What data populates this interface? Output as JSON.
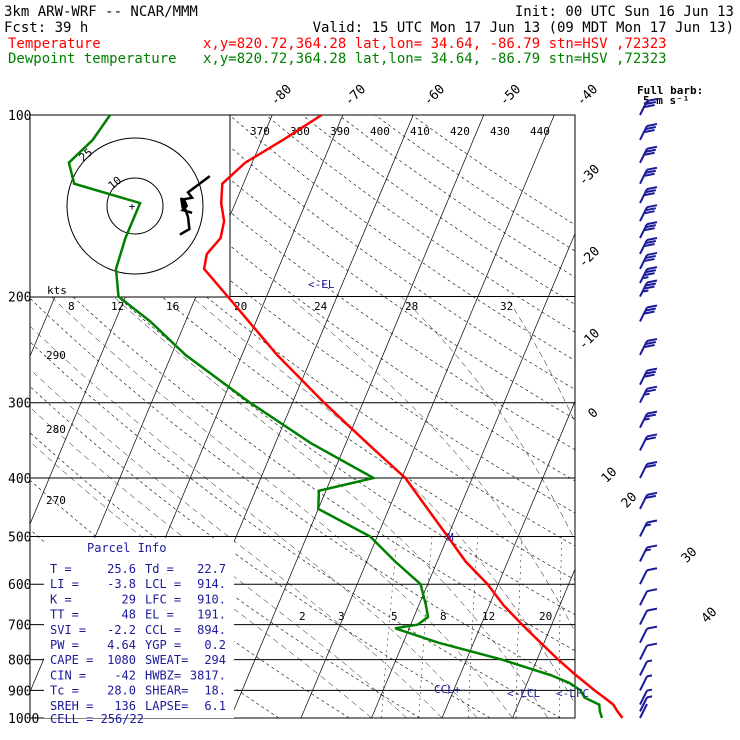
{
  "header": {
    "line1_left": "3km ARW-WRF -- NCAR/MMM",
    "line1_right": "Init: 00 UTC Sun 16 Jun 13",
    "line2_left": "Fcst:   39 h",
    "line2_right": "Valid: 15 UTC Mon 17 Jun 13 (09 MDT Mon 17 Jun 13)",
    "temp_label": "Temperature",
    "temp_info": "x,y=820.72,364.28   lat,lon= 34.64, -86.79   stn=HSV ,72323",
    "dew_label": "Dewpoint temperature",
    "dew_info": "x,y=820.72,364.28   lat,lon= 34.64, -86.79   stn=HSV ,72323"
  },
  "barb_legend": {
    "line1": "Full barb:",
    "line2": "5 m s⁻¹"
  },
  "colors": {
    "temperature": "#ff0000",
    "dewpoint": "#008000",
    "annotation": "#1a1a9a",
    "axes": "#000000"
  },
  "hodograph": {
    "units": "kts",
    "ring_labels": [
      "25",
      "10"
    ],
    "path_uv": [
      [
        27.5,
        11
      ],
      [
        19.5,
        5
      ],
      [
        21,
        3
      ],
      [
        18,
        2.5
      ],
      [
        19,
        0
      ],
      [
        17.5,
        -1.5
      ],
      [
        21,
        -2.5
      ],
      [
        19,
        -2
      ],
      [
        17.5,
        -0.5
      ],
      [
        17,
        3
      ],
      [
        19.5,
        -4
      ],
      [
        20,
        -8.5
      ],
      [
        16.5,
        -10.5
      ]
    ]
  },
  "theta_labels": [
    "370",
    "380",
    "390",
    "400",
    "410",
    "420",
    "430",
    "440"
  ],
  "mixing_ratio_top": [
    "8",
    "12",
    "16",
    "20",
    "24",
    "28",
    "32"
  ],
  "mixing_ratio_low": [
    "2",
    "3",
    "5",
    "8",
    "12",
    "20"
  ],
  "left_theta_labels": [
    "290",
    "280",
    "270"
  ],
  "chart_data": {
    "type": "line",
    "chart_kind": "skew-T log-p sounding",
    "pressure_levels": [
      "100",
      "200",
      "300",
      "400",
      "500",
      "600",
      "700",
      "800",
      "900",
      "1000"
    ],
    "temperature_axis_labels": [
      "-80",
      "-70",
      "-60",
      "-50",
      "-40",
      "-30",
      "-20",
      "-10",
      "0",
      "10",
      "20",
      "30",
      "40"
    ],
    "y_scale": "log pressure (hPa)",
    "series": [
      {
        "name": "Temperature",
        "points": [
          [
            1000,
            25.6
          ],
          [
            975,
            24.5
          ],
          [
            950,
            23.5
          ],
          [
            925,
            21.8
          ],
          [
            900,
            20.0
          ],
          [
            850,
            16.5
          ],
          [
            800,
            13.0
          ],
          [
            750,
            9.5
          ],
          [
            700,
            5.8
          ],
          [
            650,
            2.0
          ],
          [
            600,
            -1.5
          ],
          [
            550,
            -6.0
          ],
          [
            500,
            -10.0
          ],
          [
            450,
            -14.5
          ],
          [
            400,
            -19.5
          ],
          [
            350,
            -27.0
          ],
          [
            300,
            -35.5
          ],
          [
            250,
            -45.0
          ],
          [
            200,
            -55.5
          ],
          [
            180,
            -60.5
          ],
          [
            170,
            -61.0
          ],
          [
            160,
            -60.0
          ],
          [
            150,
            -60.5
          ],
          [
            140,
            -62.0
          ],
          [
            130,
            -63.0
          ],
          [
            120,
            -61.0
          ],
          [
            110,
            -57.0
          ],
          [
            100,
            -53.0
          ]
        ]
      },
      {
        "name": "Dewpoint temperature",
        "points": [
          [
            1000,
            22.7
          ],
          [
            975,
            22.0
          ],
          [
            950,
            21.5
          ],
          [
            925,
            19.0
          ],
          [
            900,
            18.0
          ],
          [
            875,
            16.0
          ],
          [
            850,
            13.0
          ],
          [
            800,
            5.0
          ],
          [
            750,
            -5.0
          ],
          [
            710,
            -12.0
          ],
          [
            700,
            -9.0
          ],
          [
            680,
            -8.0
          ],
          [
            650,
            -9.0
          ],
          [
            600,
            -11.0
          ],
          [
            550,
            -16.0
          ],
          [
            500,
            -21.0
          ],
          [
            450,
            -30.0
          ],
          [
            420,
            -31.0
          ],
          [
            400,
            -24.0
          ],
          [
            350,
            -35.0
          ],
          [
            300,
            -46.0
          ],
          [
            250,
            -58.0
          ],
          [
            220,
            -65.0
          ],
          [
            200,
            -71.0
          ],
          [
            180,
            -73.0
          ],
          [
            160,
            -73.5
          ],
          [
            140,
            -73.5
          ],
          [
            130,
            -84.0
          ],
          [
            120,
            -86.0
          ],
          [
            110,
            -84.0
          ],
          [
            100,
            -83.0
          ]
        ]
      }
    ],
    "annotations": {
      "el": "<-EL",
      "ccl": "CCL+-",
      "lcl": "<-LCL",
      "lfc": "<-LFC",
      "mark": "M"
    }
  },
  "parcel_info": {
    "title": "Parcel Info",
    "rows": [
      [
        "T  =",
        "25.6",
        "Td =",
        "22.7"
      ],
      [
        "LI =",
        "-3.8",
        "LCL =",
        "914."
      ],
      [
        "K  =",
        "29",
        "LFC =",
        "910."
      ],
      [
        "TT =",
        "48",
        "EL =",
        "191."
      ],
      [
        "SVI =",
        "-2.2",
        "CCL =",
        "894."
      ],
      [
        "PW =",
        "4.64",
        "YGP =",
        "0.2"
      ],
      [
        "CAPE =",
        "1080",
        "SWEAT=",
        "294"
      ],
      [
        "CIN =",
        "-42",
        "HWBZ=",
        "3817."
      ],
      [
        "Tc =",
        "28.0",
        "SHEAR=",
        "18."
      ],
      [
        "SREH =",
        "136",
        "LAPSE=",
        "6.1"
      ]
    ],
    "last_row": "CELL = 256/22"
  },
  "wind_barbs": [
    [
      100,
      30
    ],
    [
      110,
      30
    ],
    [
      120,
      30
    ],
    [
      130,
      30
    ],
    [
      140,
      31
    ],
    [
      150,
      32
    ],
    [
      160,
      33
    ],
    [
      170,
      34
    ],
    [
      180,
      34
    ],
    [
      190,
      35
    ],
    [
      200,
      35
    ],
    [
      220,
      34
    ],
    [
      250,
      32
    ],
    [
      280,
      30
    ],
    [
      300,
      28
    ],
    [
      330,
      26
    ],
    [
      360,
      24
    ],
    [
      400,
      22
    ],
    [
      450,
      20
    ],
    [
      500,
      18
    ],
    [
      550,
      16
    ],
    [
      600,
      14
    ],
    [
      650,
      12
    ],
    [
      700,
      11
    ],
    [
      750,
      10
    ],
    [
      800,
      10
    ],
    [
      850,
      9
    ],
    [
      900,
      7
    ],
    [
      950,
      6
    ],
    [
      975,
      5
    ],
    [
      1000,
      4
    ]
  ]
}
